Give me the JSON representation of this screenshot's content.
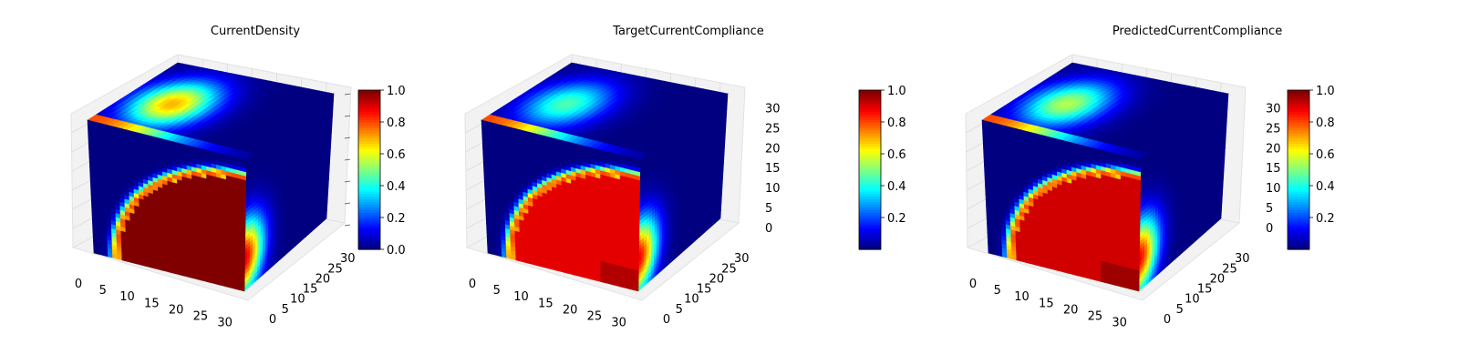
{
  "figure": {
    "panel_count": 3
  },
  "chart_data": [
    {
      "type": "voxel3d",
      "title": "CurrentDensity",
      "xlabel": "",
      "ylabel": "",
      "zlabel": "",
      "grid_size": 32,
      "x_ticks": [
        0,
        5,
        10,
        15,
        20,
        25,
        30
      ],
      "y_ticks": [
        0,
        5,
        10,
        15,
        20,
        25,
        30
      ],
      "z_ticks": [],
      "colormap": "jet",
      "colorbar": {
        "range": [
          0.0,
          1.0
        ],
        "ticks": [
          0.0,
          0.2,
          0.4,
          0.6,
          0.8,
          1.0
        ]
      },
      "fields": {
        "front_inside": 1.0,
        "front_outside": 0.0,
        "band_peak": 0.8,
        "top_hot_spot": 0.7,
        "side_edge": 0.9,
        "background": 0.0
      }
    },
    {
      "type": "voxel3d",
      "title": "TargetCurrentCompliance",
      "xlabel": "",
      "ylabel": "",
      "zlabel": "",
      "grid_size": 32,
      "x_ticks": [
        0,
        5,
        10,
        15,
        20,
        25,
        30
      ],
      "y_ticks": [
        0,
        5,
        10,
        15,
        20,
        25,
        30
      ],
      "z_ticks": [
        0,
        5,
        10,
        15,
        20,
        25,
        30
      ],
      "colormap": "jet",
      "colorbar": {
        "range": [
          0.0,
          1.0
        ],
        "ticks": [
          0.2,
          0.4,
          0.6,
          0.8,
          1.0
        ]
      },
      "fields": {
        "front_inside": 0.9,
        "front_outside": 0.0,
        "band_peak": 0.8,
        "top_hot_spot": 0.45,
        "side_edge": 0.88,
        "background": 0.0
      }
    },
    {
      "type": "voxel3d",
      "title": "PredictedCurrentCompliance",
      "xlabel": "",
      "ylabel": "",
      "zlabel": "",
      "grid_size": 32,
      "x_ticks": [
        0,
        5,
        10,
        15,
        20,
        25,
        30
      ],
      "y_ticks": [
        0,
        5,
        10,
        15,
        20,
        25,
        30
      ],
      "z_ticks": [
        0,
        5,
        10,
        15,
        20,
        25,
        30
      ],
      "colormap": "jet",
      "colorbar": {
        "range": [
          0.0,
          1.0
        ],
        "ticks": [
          0.2,
          0.4,
          0.6,
          0.8,
          1.0
        ]
      },
      "fields": {
        "front_inside": 0.92,
        "front_outside": 0.0,
        "band_peak": 0.8,
        "top_hot_spot": 0.55,
        "side_edge": 0.88,
        "background": 0.0
      }
    }
  ]
}
